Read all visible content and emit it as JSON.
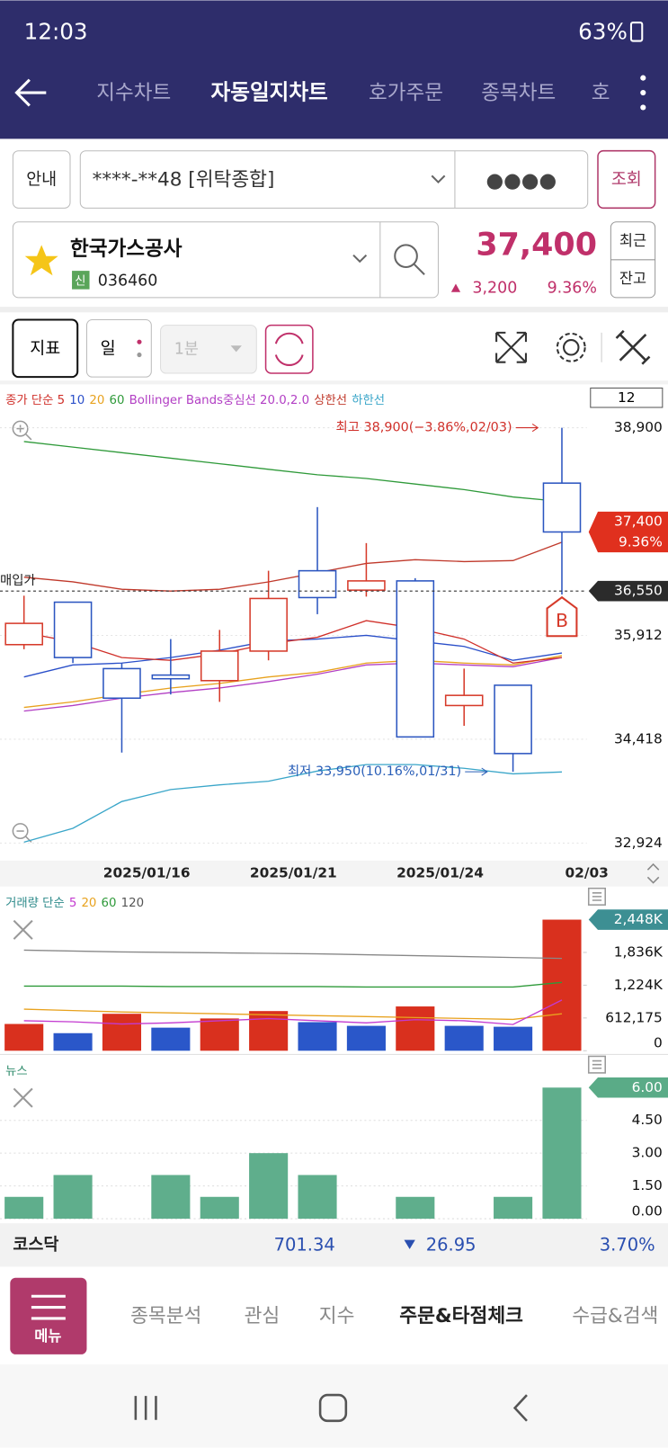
{
  "status_bar": {
    "time": "12:03",
    "battery": "63%"
  },
  "tabs": [
    "지수차트",
    "자동일지차트",
    "호가주문",
    "종목차트",
    "호"
  ],
  "account": {
    "guide_button": "안내",
    "account_number": "****-**48 [위탁종합]",
    "password": "●●●●",
    "query_button": "조회"
  },
  "stock": {
    "name": "한국가스공사",
    "badge": "신",
    "code": "036460",
    "price": "37,400",
    "change": "3,200",
    "change_rate": "9.36%",
    "recent_button": "최근",
    "balance_button": "잔고"
  },
  "toolbar": {
    "indicator_button": "지표",
    "period_button": "일",
    "minute_select": "1분"
  },
  "chart_data": [
    {
      "type": "candlestick",
      "legend": [
        {
          "text": "종가 단순 5",
          "color": "#d0302a"
        },
        {
          "text": "10",
          "color": "#2a4fc9"
        },
        {
          "text": "20",
          "color": "#e8a21e"
        },
        {
          "text": "60",
          "color": "#2f9a3a"
        },
        {
          "text": "Bollinger Bands중심선 20.0,2.0",
          "color": "#b23fc4"
        },
        {
          "text": "상한선",
          "color": "#c0392b"
        },
        {
          "text": "하한선",
          "color": "#3aa6c9"
        }
      ],
      "period": "12",
      "open": [
        35779,
        36390,
        35434,
        35341,
        35261,
        35686,
        36842,
        36563,
        36696,
        34903,
        35195,
        38103
      ],
      "high": [
        36483,
        36390,
        35514,
        35859,
        35991,
        36842,
        37758,
        37240,
        36735,
        35434,
        35195,
        38900
      ],
      "low": [
        35713,
        35514,
        34226,
        35062,
        34956,
        35553,
        36217,
        36470,
        34451,
        34611,
        33950,
        36500
      ],
      "close": [
        36085,
        35593,
        35009,
        35288,
        35686,
        36443,
        36456,
        36696,
        34451,
        35049,
        34212,
        37400
      ],
      "up_color": "#d63a2a",
      "down_color": "#2b55c0",
      "lines": [
        {
          "color": "#2f9a3a",
          "values": [
            38701,
            38621,
            38541,
            38462,
            38382,
            38302,
            38223,
            38170,
            38090,
            38010,
            37904,
            37838
          ]
        },
        {
          "color": "#c0392b",
          "values": [
            36749,
            36682,
            36576,
            36550,
            36576,
            36682,
            36815,
            36948,
            37001,
            36974,
            36988,
            37253
          ]
        },
        {
          "color": "#e8a21e",
          "values": [
            34876,
            34956,
            35062,
            35155,
            35221,
            35314,
            35380,
            35514,
            35553,
            35514,
            35487,
            35620
          ]
        },
        {
          "color": "#b23fc4",
          "values": [
            34823,
            34903,
            35009,
            35089,
            35155,
            35248,
            35354,
            35487,
            35514,
            35487,
            35461,
            35593
          ]
        },
        {
          "color": "#2a4fc9",
          "values": [
            35314,
            35487,
            35514,
            35593,
            35699,
            35832,
            35859,
            35912,
            35832,
            35753,
            35553,
            35659
          ]
        },
        {
          "color": "#d0302a",
          "values": [
            35952,
            35819,
            35593,
            35553,
            35646,
            35792,
            35885,
            36124,
            36018,
            35859,
            35514,
            35593
          ]
        },
        {
          "color": "#3aa6c9",
          "values": [
            32937,
            33136,
            33522,
            33694,
            33761,
            33814,
            33960,
            34053,
            34053,
            34000,
            33920,
            33947
          ]
        }
      ],
      "ylim": [
        32831,
        39471
      ],
      "yticks": [
        {
          "value": 38900,
          "label": "38,900"
        },
        {
          "value": 35912,
          "label": "35,912"
        },
        {
          "value": 34418,
          "label": "34,418"
        },
        {
          "value": 32924,
          "label": "32,924"
        }
      ],
      "current_price": {
        "value": 37400,
        "label": "37,400",
        "change_rate": "9.36%",
        "color": "#e0301e"
      },
      "purchase_price": {
        "value": 36550,
        "label": "36,550",
        "text": "매입가"
      },
      "annotations": [
        {
          "text": "최고 38,900(−3.86%,02/03)",
          "value": 38900,
          "color": "#d0302a"
        },
        {
          "text": "최저 33,950(10.16%,01/31)",
          "value": 33950,
          "color": "#2a5fb8"
        }
      ],
      "signal": "B",
      "x_labels": [
        "2025/01/16",
        "2025/01/21",
        "2025/01/24",
        "02/03"
      ]
    },
    {
      "type": "bar",
      "legend": [
        {
          "text": "거래량 단순",
          "color": "#2e8b8b"
        },
        {
          "text": "5",
          "color": "#c33ad0"
        },
        {
          "text": "20",
          "color": "#e8a21e"
        },
        {
          "text": "60",
          "color": "#2f9a3a"
        },
        {
          "text": "120",
          "color": "#555555"
        }
      ],
      "values": [
        500000,
        328000,
        690000,
        431000,
        603000,
        741000,
        534000,
        465000,
        827000,
        465000,
        448000,
        2448000
      ],
      "value_labels": [
        null,
        null,
        null,
        null,
        null,
        null,
        null,
        null,
        null,
        null,
        null,
        "2,448K"
      ],
      "value_label_color": "#3d8f93",
      "colors": [
        "#d9301e",
        "#2a57c9",
        "#d9301e",
        "#2a57c9",
        "#d9301e",
        "#d9301e",
        "#2a57c9",
        "#2a57c9",
        "#d9301e",
        "#2a57c9",
        "#2a57c9",
        "#d9301e"
      ],
      "lines": [
        {
          "color": "#888888",
          "values": [
            1879000,
            1862000,
            1845000,
            1836000,
            1828000,
            1819000,
            1810000,
            1793000,
            1776000,
            1759000,
            1741000,
            1724000
          ]
        },
        {
          "color": "#2f9a3a",
          "values": [
            1207000,
            1207000,
            1207000,
            1198000,
            1198000,
            1198000,
            1198000,
            1190000,
            1190000,
            1190000,
            1190000,
            1276000
          ]
        },
        {
          "color": "#e8a21e",
          "values": [
            776000,
            750000,
            724000,
            707000,
            690000,
            672000,
            655000,
            638000,
            620000,
            603000,
            586000,
            690000
          ]
        },
        {
          "color": "#c33ad0",
          "values": [
            560000,
            540000,
            500000,
            520000,
            560000,
            600000,
            560000,
            520000,
            580000,
            560000,
            490000,
            948000
          ]
        }
      ],
      "ylim": [
        0,
        2551000
      ],
      "yticks": [
        0,
        {
          "value": 612175,
          "label": "612,175"
        },
        {
          "value": 1224000,
          "label": "1,224K"
        },
        {
          "value": 1836000,
          "label": "1,836K"
        }
      ],
      "grid": false
    },
    {
      "type": "bar",
      "legend": [
        {
          "text": "뉴스",
          "color": "#2e8b6b"
        }
      ],
      "values": [
        1,
        2,
        0,
        2,
        1,
        3,
        2,
        0,
        1,
        0,
        1,
        6
      ],
      "value_labels": [
        null,
        null,
        null,
        null,
        null,
        null,
        null,
        null,
        null,
        null,
        null,
        "6.00"
      ],
      "value_label_color": "#5aab87",
      "color": "#5fae8c",
      "ylim": [
        0,
        6.25
      ],
      "yticks": [
        {
          "value": 0,
          "label": "0.00"
        },
        {
          "value": 1.5,
          "label": "1.50"
        },
        {
          "value": 3,
          "label": "3.00"
        },
        {
          "value": 4.5,
          "label": "4.50"
        }
      ],
      "grid": true
    }
  ],
  "market_ticker": {
    "name": "코스닥",
    "value": "701.34",
    "change": "26.95",
    "change_rate": "3.70%"
  },
  "bottom_nav": {
    "menu": "메뉴",
    "items": [
      "종목분석",
      "관심",
      "지수",
      "주문&타점체크",
      "수급&검색"
    ]
  }
}
